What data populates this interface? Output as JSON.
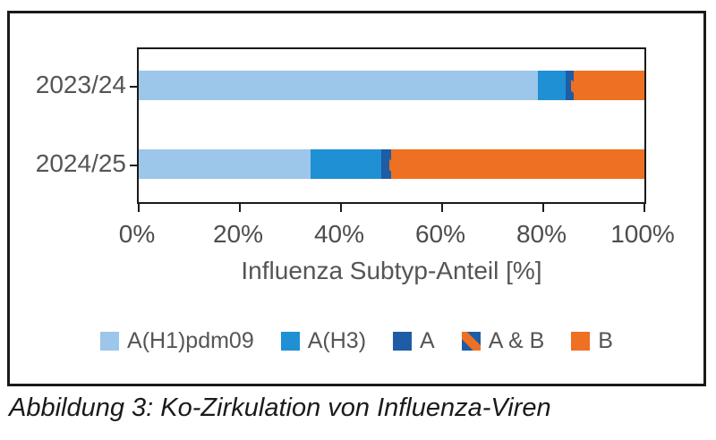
{
  "figure": {
    "caption": "Abbildung 3: Ko-Zirkulation von Influenza-Viren"
  },
  "chart_data": {
    "type": "bar",
    "orientation": "horizontal",
    "stacked": true,
    "title": "",
    "xlabel": "Influenza Subtyp-Anteil [%]",
    "ylabel": "",
    "categories": [
      "2023/24",
      "2024/25"
    ],
    "series": [
      {
        "name": "A(H1)pdm09",
        "color": "#9CC6EA",
        "values": [
          79,
          34
        ]
      },
      {
        "name": "A(H3)",
        "color": "#1F90D3",
        "values": [
          5.5,
          14
        ]
      },
      {
        "name": "A",
        "color": "#1E5CA5",
        "values": [
          1,
          1.5
        ]
      },
      {
        "name": "A & B",
        "color": "#1E5CA5",
        "color2": "#EE7023",
        "pattern": "diagonal-stripe",
        "values": [
          0.5,
          0.5
        ]
      },
      {
        "name": "B",
        "color": "#EE7023",
        "values": [
          14,
          50
        ]
      }
    ],
    "xlim": [
      0,
      100
    ],
    "x_ticks": [
      "0%",
      "20%",
      "40%",
      "60%",
      "80%",
      "100%"
    ],
    "grid": false,
    "legend_position": "bottom",
    "colors": {
      "axis": "#1a1a1a",
      "label_gray": "#555555"
    }
  }
}
